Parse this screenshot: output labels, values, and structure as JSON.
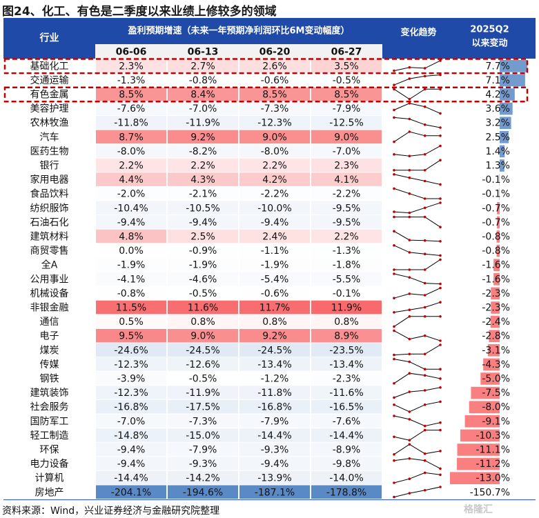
{
  "figure": {
    "title": "图24、化工、有色是二季度以来业绩上修较多的领域",
    "source": "资料来源：Wind，兴业证券经济与金融研究院整理",
    "watermark": "格隆汇"
  },
  "colors": {
    "header_bg": "#1f4aa8",
    "header_text": "#ffffff",
    "date_row_bg": "#f2f2f2",
    "positive": "#f8696b",
    "negative": "#5a8ac6",
    "neutral": "#ffffff",
    "highlight_box": "#c00000",
    "spark_line": "#000000",
    "spark_dot": "#c00000"
  },
  "chart_data": {
    "type": "table",
    "headers": {
      "industry": "行业",
      "group": "盈利预期增速（未来一年预期净利润环比6M变动幅度）",
      "trend": "变化趋势",
      "change_line1": "2025Q2",
      "change_line2": "以来变动"
    },
    "dates": [
      "06-06",
      "06-13",
      "06-20",
      "06-27"
    ],
    "highlighted_rows": [
      "基础化工",
      "有色金属"
    ],
    "rows": [
      {
        "name": "基础化工",
        "values": [
          2.3,
          2.7,
          2.6,
          3.5
        ],
        "change": 7.7
      },
      {
        "name": "交通运输",
        "values": [
          -1.3,
          -0.8,
          -0.6,
          -0.5
        ],
        "change": 7.1
      },
      {
        "name": "有色金属",
        "values": [
          8.5,
          8.4,
          8.5,
          8.5
        ],
        "change": 4.2
      },
      {
        "name": "美容护理",
        "values": [
          -7.6,
          -7.0,
          -7.3,
          -7.9
        ],
        "change": 3.6
      },
      {
        "name": "农林牧渔",
        "values": [
          -11.8,
          -11.9,
          -12.3,
          -12.5
        ],
        "change": 3.2
      },
      {
        "name": "汽车",
        "values": [
          8.7,
          9.2,
          9.0,
          9.0
        ],
        "change": 2.5
      },
      {
        "name": "医药生物",
        "values": [
          -8.0,
          -8.2,
          -8.0,
          -7.0
        ],
        "change": 1.4
      },
      {
        "name": "银行",
        "values": [
          2.2,
          2.2,
          2.2,
          2.3
        ],
        "change": 1.3
      },
      {
        "name": "家用电器",
        "values": [
          4.4,
          4.3,
          4.2,
          4.1
        ],
        "change": -0.1
      },
      {
        "name": "食品饮料",
        "values": [
          -2.0,
          -2.1,
          -2.2,
          -2.2
        ],
        "change": -0.1
      },
      {
        "name": "纺织服饰",
        "values": [
          -10.4,
          -10.5,
          -10.0,
          -9.5
        ],
        "change": -0.7
      },
      {
        "name": "石油石化",
        "values": [
          -9.4,
          -9.4,
          -9.4,
          -9.5
        ],
        "change": -0.7
      },
      {
        "name": "建筑材料",
        "values": [
          4.8,
          2.5,
          2.4,
          2.2
        ],
        "change": -0.8
      },
      {
        "name": "商贸零售",
        "values": [
          0.0,
          -0.9,
          -1.1,
          -1.3
        ],
        "change": -0.8
      },
      {
        "name": "全A",
        "values": [
          -1.9,
          -1.9,
          -1.9,
          -1.8
        ],
        "change": -1.6
      },
      {
        "name": "公用事业",
        "values": [
          -4.1,
          -4.6,
          -5.4,
          -5.5
        ],
        "change": -1.6
      },
      {
        "name": "机械设备",
        "values": [
          -0.8,
          -0.5,
          -0.6,
          -0.1
        ],
        "change": -2.3
      },
      {
        "name": "非银金融",
        "values": [
          11.5,
          11.6,
          11.7,
          11.9
        ],
        "change": -2.3
      },
      {
        "name": "通信",
        "values": [
          0.5,
          0.8,
          0.8,
          0.8
        ],
        "change": -2.4
      },
      {
        "name": "电子",
        "values": [
          9.5,
          9.0,
          9.2,
          8.9
        ],
        "change": -2.8
      },
      {
        "name": "煤炭",
        "values": [
          -24.6,
          -24.5,
          -24.5,
          -23.5
        ],
        "change": -3.1
      },
      {
        "name": "传媒",
        "values": [
          -12.3,
          -12.6,
          -13.4,
          -13.4
        ],
        "change": -4.3
      },
      {
        "name": "钢铁",
        "values": [
          -3.9,
          -0.5,
          -1.2,
          -2.3
        ],
        "change": -5.0
      },
      {
        "name": "建筑装饰",
        "values": [
          -12.3,
          -11.9,
          -11.8,
          -11.6
        ],
        "change": -7.5
      },
      {
        "name": "社会服务",
        "values": [
          -16.8,
          -17.5,
          -16.8,
          -16.5
        ],
        "change": -8.0
      },
      {
        "name": "国防军工",
        "values": [
          -7.0,
          -7.3,
          -7.9,
          -7.6
        ],
        "change": -9.1
      },
      {
        "name": "轻工制造",
        "values": [
          -14.8,
          -15.0,
          -14.4,
          -14.4
        ],
        "change": -10.3
      },
      {
        "name": "环保",
        "values": [
          -9.4,
          -7.9,
          -9.3,
          -8.9
        ],
        "change": -11.1
      },
      {
        "name": "电力设备",
        "values": [
          -9.4,
          -9.3,
          -9.4,
          -9.8
        ],
        "change": -11.2
      },
      {
        "name": "计算机",
        "values": [
          -14.4,
          -14.2,
          -13.9,
          -14.0
        ],
        "change": -13.0
      },
      {
        "name": "房地产",
        "values": [
          -204.1,
          -194.6,
          -187.1,
          -178.8
        ],
        "change": -150.7
      }
    ]
  }
}
